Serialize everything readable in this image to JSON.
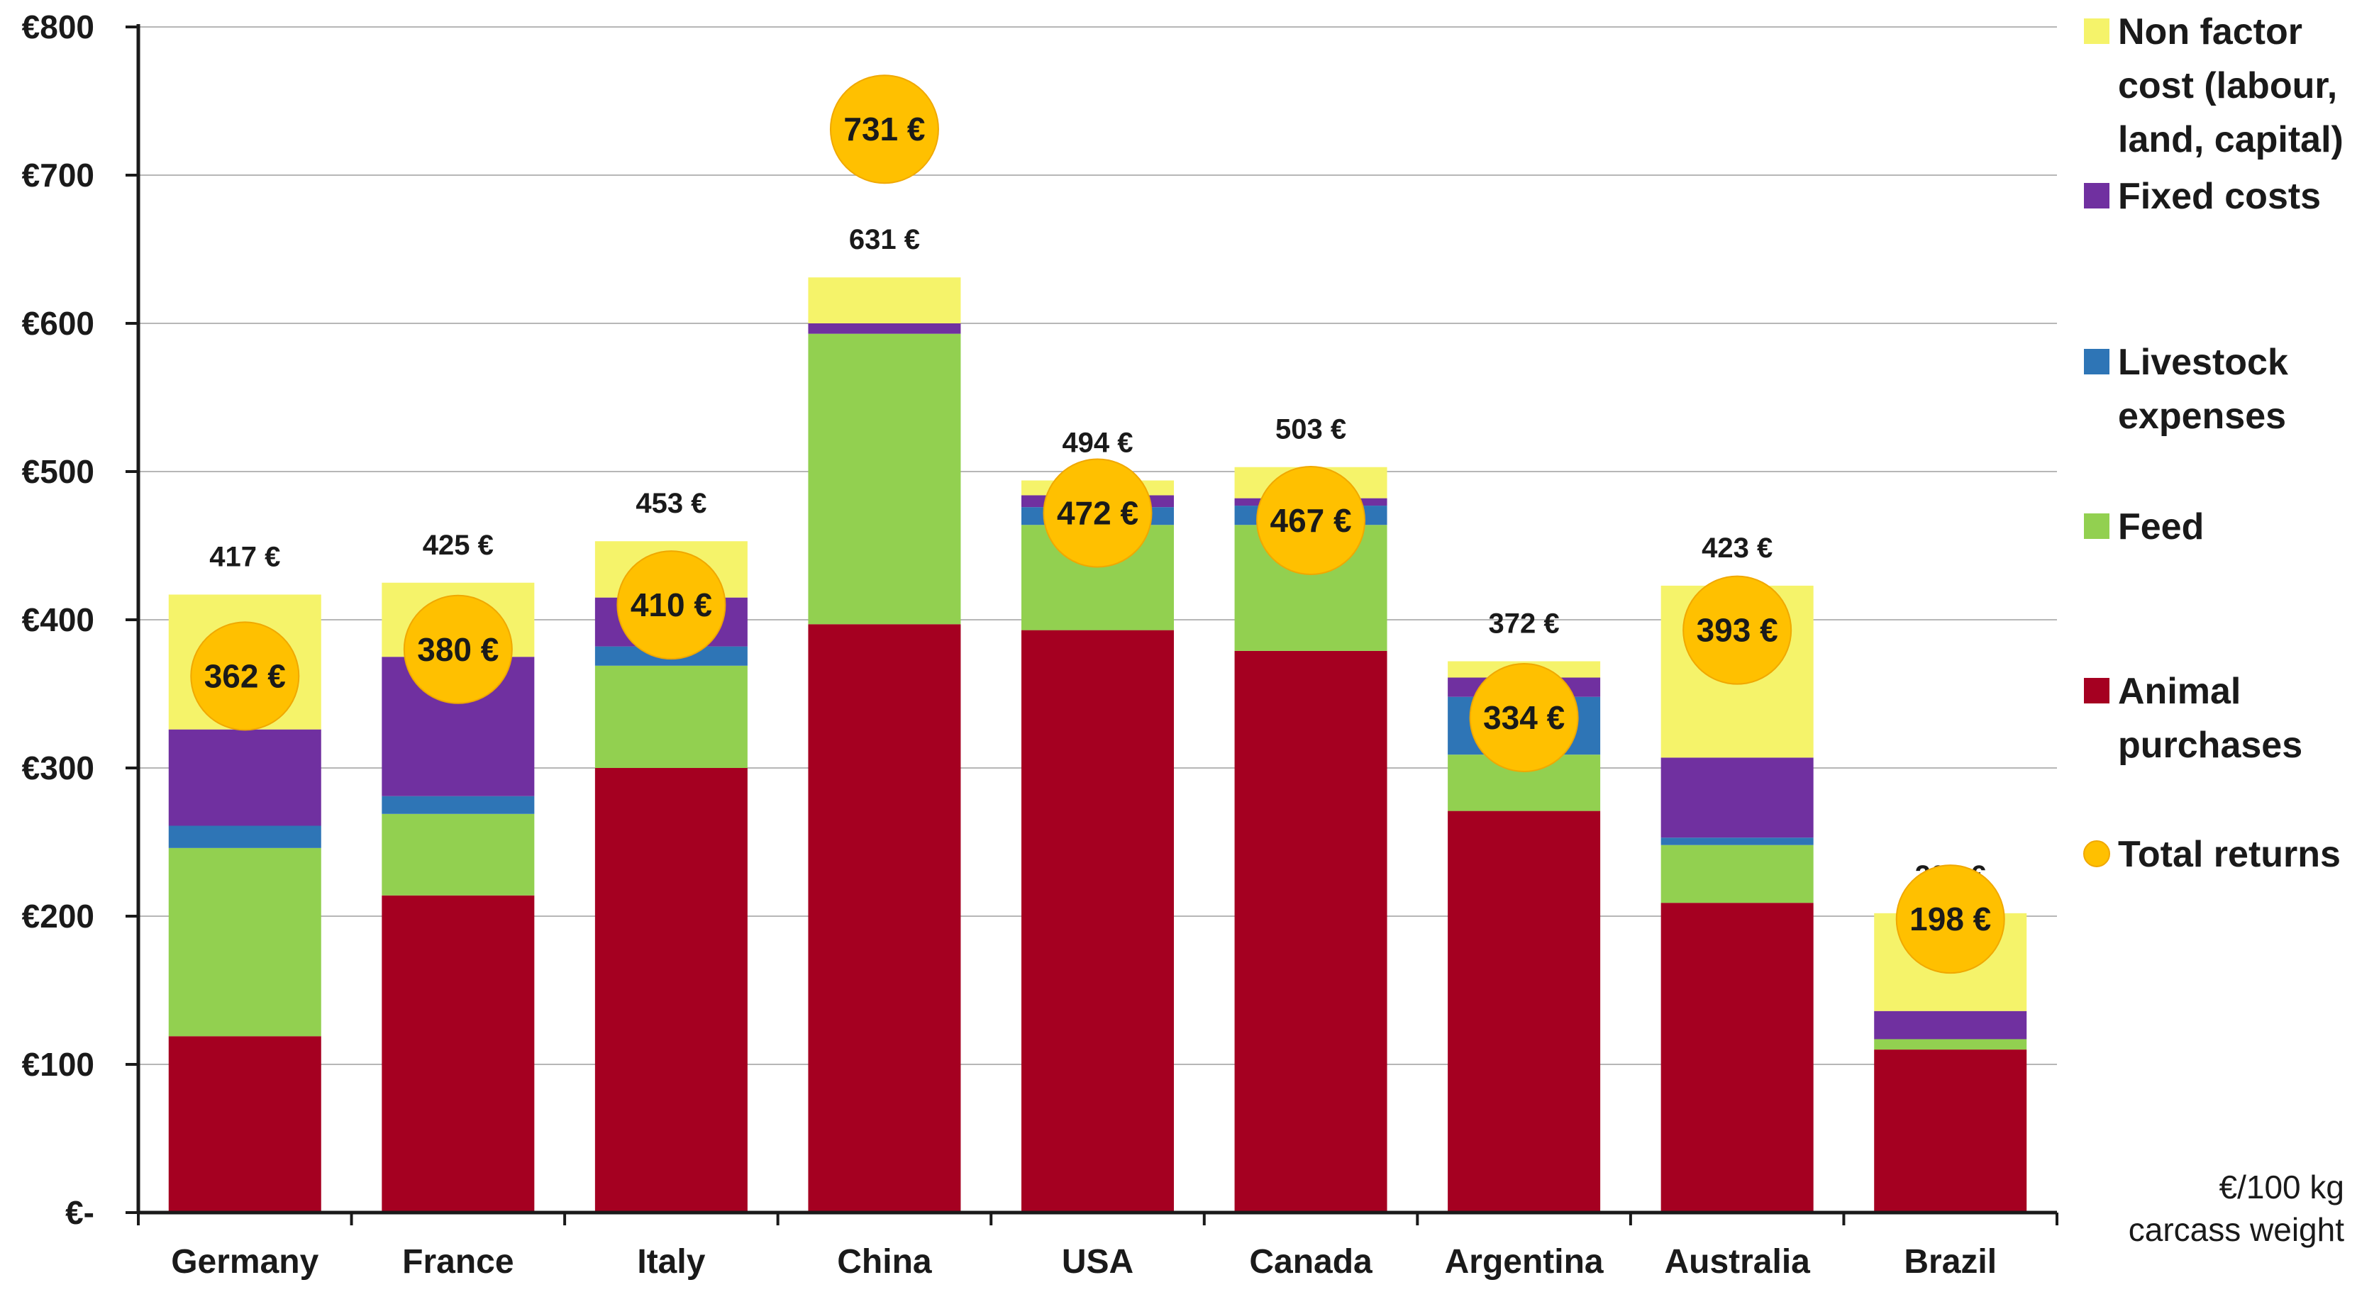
{
  "chart_data": {
    "type": "bar",
    "stacked": true,
    "categories": [
      "Germany",
      "France",
      "Italy",
      "China",
      "USA",
      "Canada",
      "Argentina",
      "Australia",
      "Brazil"
    ],
    "series": [
      {
        "name": " Animal purchases",
        "color": "#a50021",
        "values": [
          119,
          214,
          300,
          397,
          393,
          379,
          271,
          209,
          110
        ]
      },
      {
        "name": "Feed",
        "color": "#92d050",
        "values": [
          127,
          55,
          69,
          196,
          71,
          85,
          38,
          39,
          7
        ]
      },
      {
        "name": "Livestock expenses",
        "color": "#2e75b6",
        "values": [
          15,
          12,
          13,
          0,
          12,
          13,
          39,
          5,
          0
        ]
      },
      {
        "name": "Fixed costs",
        "color": "#7030a0",
        "values": [
          65,
          94,
          33,
          7,
          8,
          5,
          13,
          54,
          19
        ]
      },
      {
        "name": "Non factor cost (labour, land, capital)",
        "color": "#f5f36a",
        "values": [
          91,
          50,
          38,
          31,
          10,
          21,
          11,
          116,
          66
        ]
      }
    ],
    "totals": [
      417,
      425,
      453,
      631,
      494,
      503,
      372,
      423,
      202
    ],
    "total_labels": [
      "417 €",
      "425 €",
      "453 €",
      "631 €",
      "494 €",
      "503 €",
      "372 €",
      "423 €",
      "202 €"
    ],
    "returns": {
      "name": "Total returns",
      "color": "#ffc000",
      "values": [
        362,
        380,
        410,
        731,
        472,
        467,
        334,
        393,
        198
      ],
      "labels": [
        "362 €",
        "380 €",
        "410 €",
        "731 €",
        "472 €",
        "467 €",
        "334 €",
        "393 €",
        "198 €"
      ]
    },
    "ylim": [
      0,
      800
    ],
    "y_ticks": [
      0,
      100,
      200,
      300,
      400,
      500,
      600,
      700,
      800
    ],
    "y_tick_labels": [
      "€-",
      "€100",
      "€200",
      "€300",
      "€400",
      "€500",
      "€600",
      "€700",
      "€800"
    ],
    "grid": true,
    "legend": {
      "position": "right",
      "items": [
        {
          "label_lines": [
            "Non factor",
            "cost (labour,",
            "land, capital)"
          ],
          "color": "#f5f36a",
          "marker": "square"
        },
        {
          "label_lines": [
            "Fixed costs"
          ],
          "color": "#7030a0",
          "marker": "square"
        },
        {
          "label_lines": [
            "Livestock",
            "expenses"
          ],
          "color": "#2e75b6",
          "marker": "square"
        },
        {
          "label_lines": [
            "Feed"
          ],
          "color": "#92d050",
          "marker": "square"
        },
        {
          "label_lines": [
            " Animal",
            "purchases"
          ],
          "color": "#a50021",
          "marker": "square"
        },
        {
          "label_lines": [
            "Total returns"
          ],
          "color": "#ffc000",
          "marker": "circle"
        }
      ]
    },
    "unit_note": [
      "€/100 kg",
      "carcass weight"
    ]
  }
}
